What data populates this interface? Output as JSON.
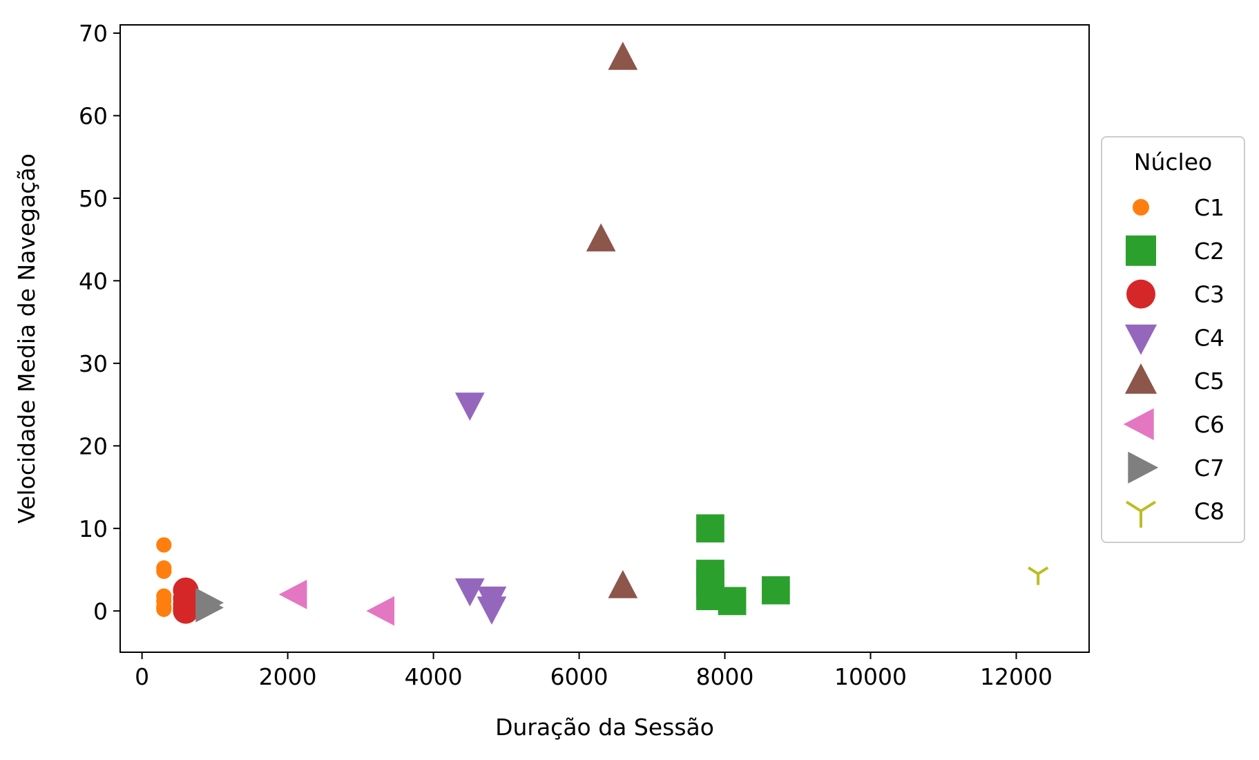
{
  "chart_data": {
    "type": "scatter",
    "title": "",
    "xlabel": "Duração da Sessão",
    "ylabel": "Velocidade Media de Navegação",
    "xlim": [
      -300,
      13000
    ],
    "ylim": [
      -5,
      71
    ],
    "xticks": [
      0,
      2000,
      4000,
      6000,
      8000,
      10000,
      12000
    ],
    "yticks": [
      0,
      10,
      20,
      30,
      40,
      50,
      60,
      70
    ],
    "grid": false,
    "legend": {
      "title": "Núcleo",
      "placement": "center-right-outside"
    },
    "series": [
      {
        "name": "C1",
        "marker": "circle",
        "color": "#ff7f0e",
        "size": 12,
        "points": [
          [
            300,
            8
          ],
          [
            300,
            5.2
          ],
          [
            300,
            4.8
          ],
          [
            300,
            1.8
          ],
          [
            300,
            1.2
          ],
          [
            300,
            0.5
          ],
          [
            300,
            0.2
          ]
        ]
      },
      {
        "name": "C2",
        "marker": "square",
        "color": "#2ca02c",
        "size": 22,
        "points": [
          [
            7800,
            10
          ],
          [
            7800,
            4.5
          ],
          [
            7800,
            3.5
          ],
          [
            7800,
            1.8
          ],
          [
            8100,
            1.2
          ],
          [
            8700,
            2.5
          ]
        ]
      },
      {
        "name": "C3",
        "marker": "circle",
        "color": "#d62728",
        "size": 20,
        "points": [
          [
            600,
            2.5
          ],
          [
            600,
            1.5
          ],
          [
            600,
            0.8
          ],
          [
            600,
            0.3
          ],
          [
            600,
            0
          ]
        ]
      },
      {
        "name": "C4",
        "marker": "triangle-down",
        "color": "#9467bd",
        "size": 22,
        "points": [
          [
            4500,
            25
          ],
          [
            4500,
            2.5
          ],
          [
            4800,
            1.5
          ],
          [
            4800,
            0.3
          ]
        ]
      },
      {
        "name": "C5",
        "marker": "triangle-up",
        "color": "#8c564b",
        "size": 22,
        "points": [
          [
            6600,
            67
          ],
          [
            6300,
            45
          ],
          [
            6600,
            3
          ]
        ]
      },
      {
        "name": "C6",
        "marker": "triangle-left",
        "color": "#e377c2",
        "size": 22,
        "points": [
          [
            2100,
            2
          ],
          [
            3300,
            0
          ]
        ]
      },
      {
        "name": "C7",
        "marker": "triangle-right",
        "color": "#7f7f7f",
        "size": 22,
        "points": [
          [
            900,
            1
          ],
          [
            900,
            0.4
          ]
        ]
      },
      {
        "name": "C8",
        "marker": "tri-down",
        "color": "#bcbd22",
        "size": 16,
        "points": [
          [
            12300,
            4.5
          ]
        ]
      }
    ]
  }
}
